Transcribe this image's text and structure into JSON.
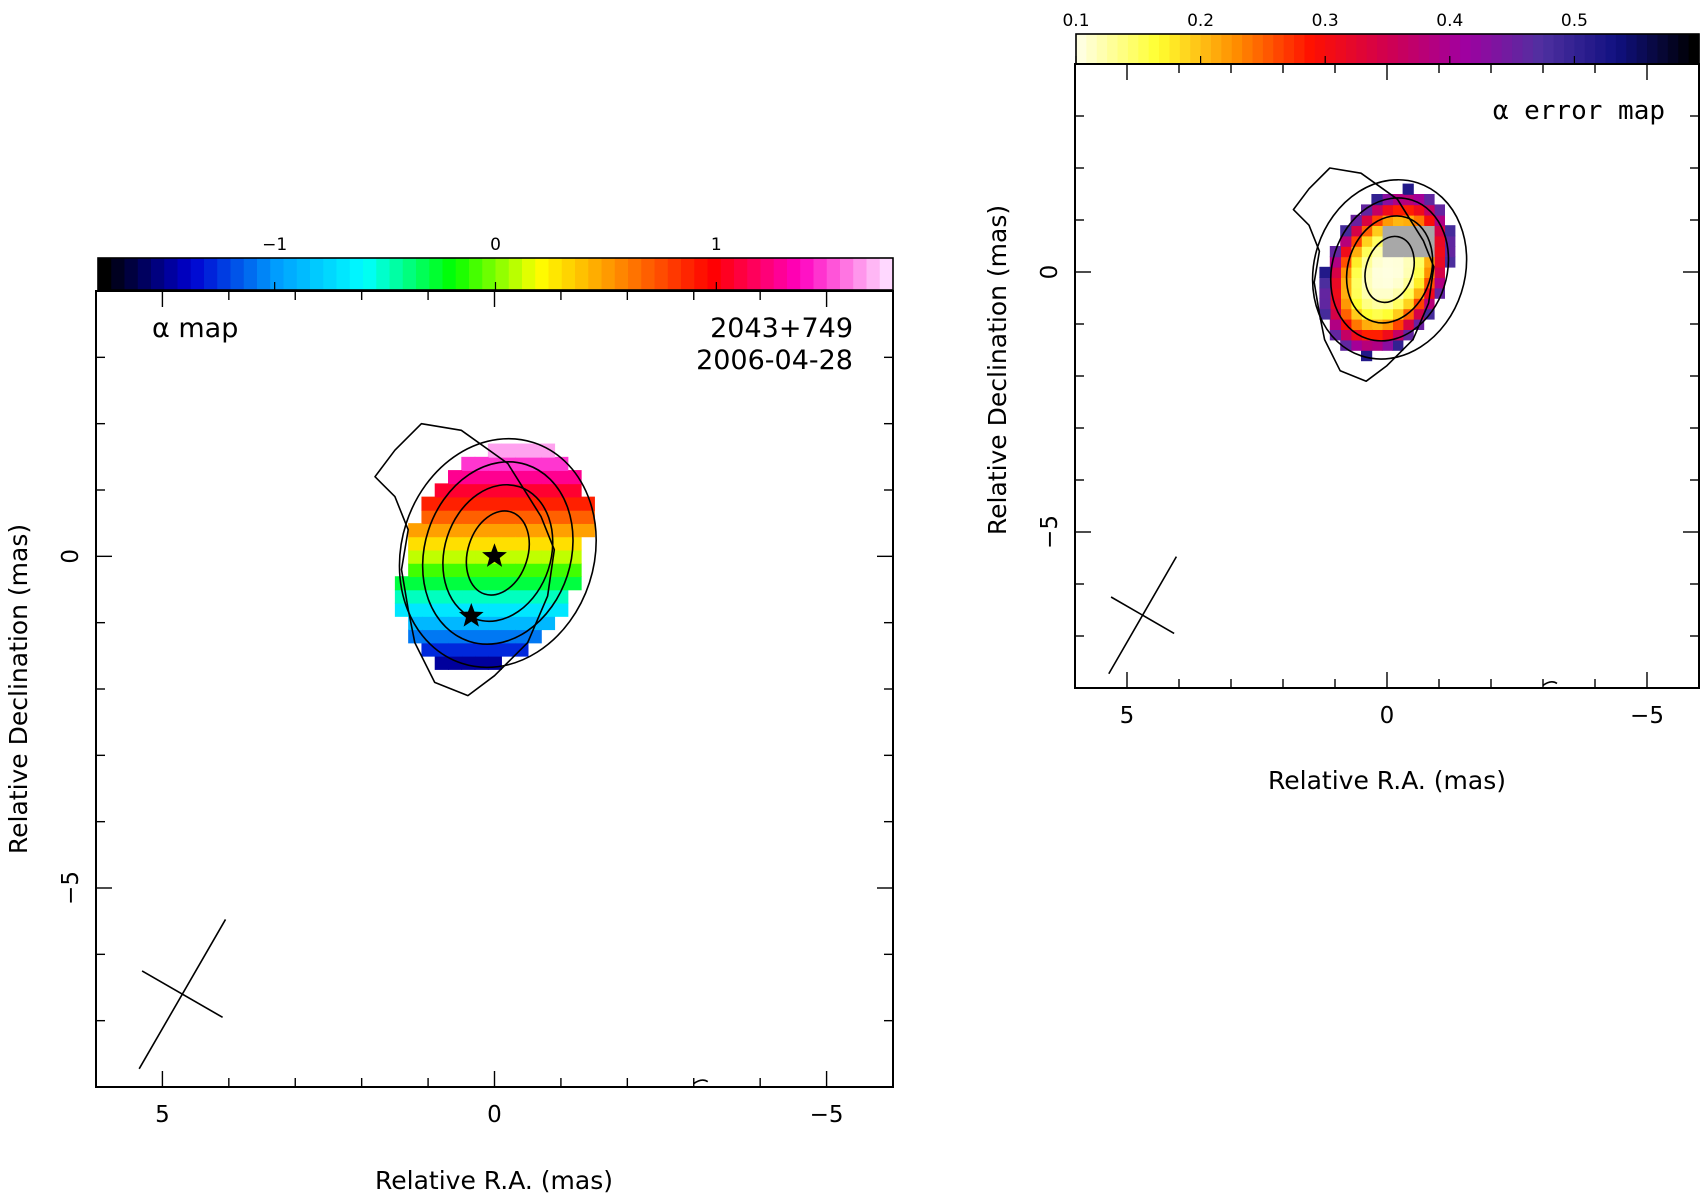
{
  "chart_data": [
    {
      "type": "heatmap",
      "title": "α map",
      "source": "2043+749",
      "date": "2006-04-28",
      "xlabel": "Relative R.A. (mas)",
      "ylabel": "Relative Declination (mas)",
      "xlim": [
        6,
        -6
      ],
      "ylim": [
        -8,
        4
      ],
      "xticks": [
        5,
        0,
        -5
      ],
      "xtick_labels": [
        "5",
        "0",
        "−5"
      ],
      "yticks": [
        0,
        -5
      ],
      "ytick_labels": [
        "0",
        "−5"
      ],
      "colorbar": {
        "range": [
          -1.8,
          1.8
        ],
        "ticks": [
          -1,
          0,
          1
        ],
        "tick_labels": [
          "−1",
          "0",
          "1"
        ],
        "colors": [
          "#000000",
          "#0000d0",
          "#00a0ff",
          "#00ffff",
          "#00ff00",
          "#ffff00",
          "#ff8000",
          "#ff0000",
          "#ff00c0",
          "#ffd8ff"
        ]
      },
      "pixel_model": {
        "center": [
          0,
          0
        ],
        "radius_major": 1.75,
        "radius_minor": 1.35,
        "gradient": "alpha increases from south (≈ -1.5 at dec -1.6) to north (≈ 1.6 at dec 1.5)"
      },
      "contours": {
        "center": [
          0,
          0
        ],
        "semi_axes": [
          [
            0.45,
            0.65
          ],
          [
            0.8,
            1.05
          ],
          [
            1.1,
            1.4
          ],
          [
            1.45,
            1.75
          ]
        ],
        "outer_level": "irregular outline from ≈(1.1, 2.0) to ≈(0.4, -2.1)"
      },
      "stars": [
        [
          0,
          0
        ],
        [
          0.35,
          -0.9
        ]
      ],
      "beam": {
        "center": [
          4.7,
          -6.6
        ],
        "major": 1.3,
        "minor": 0.7,
        "pa_deg": 30
      }
    },
    {
      "type": "heatmap",
      "title": "α error map",
      "xlabel": "Relative R.A. (mas)",
      "ylabel": "Relative Declination (mas)",
      "xlim": [
        6,
        -6
      ],
      "ylim": [
        -8,
        4
      ],
      "xticks": [
        5,
        0,
        -5
      ],
      "xtick_labels": [
        "5",
        "0",
        "−5"
      ],
      "yticks": [
        0,
        -5
      ],
      "ytick_labels": [
        "0",
        "−5"
      ],
      "colorbar": {
        "range": [
          0.1,
          0.6
        ],
        "ticks": [
          0.1,
          0.2,
          0.3,
          0.4,
          0.5
        ],
        "tick_labels": [
          "0.1",
          "0.2",
          "0.3",
          "0.4",
          "0.5"
        ],
        "colors": [
          "#ffffe0",
          "#ffff30",
          "#ff9000",
          "#ff1000",
          "#d00050",
          "#a000a0",
          "#5030a0",
          "#101080",
          "#000000"
        ]
      },
      "pixel_model": {
        "center": [
          0,
          0
        ],
        "radius_major": 1.6,
        "radius_minor": 1.2,
        "gradient": "error ≈0.1 at the core rising to ≈0.5 at the edge; grey masked region in the north-east"
      },
      "contours": {
        "center": [
          0,
          0
        ],
        "semi_axes": [
          [
            0.45,
            0.65
          ],
          [
            0.8,
            1.05
          ],
          [
            1.1,
            1.4
          ],
          [
            1.45,
            1.75
          ]
        ],
        "outer_level": "irregular outline from ≈(1.1, 2.0) to ≈(0.4, -2.1)"
      },
      "beam": {
        "center": [
          4.7,
          -6.6
        ],
        "major": 1.3,
        "minor": 0.7,
        "pa_deg": 30
      }
    }
  ]
}
